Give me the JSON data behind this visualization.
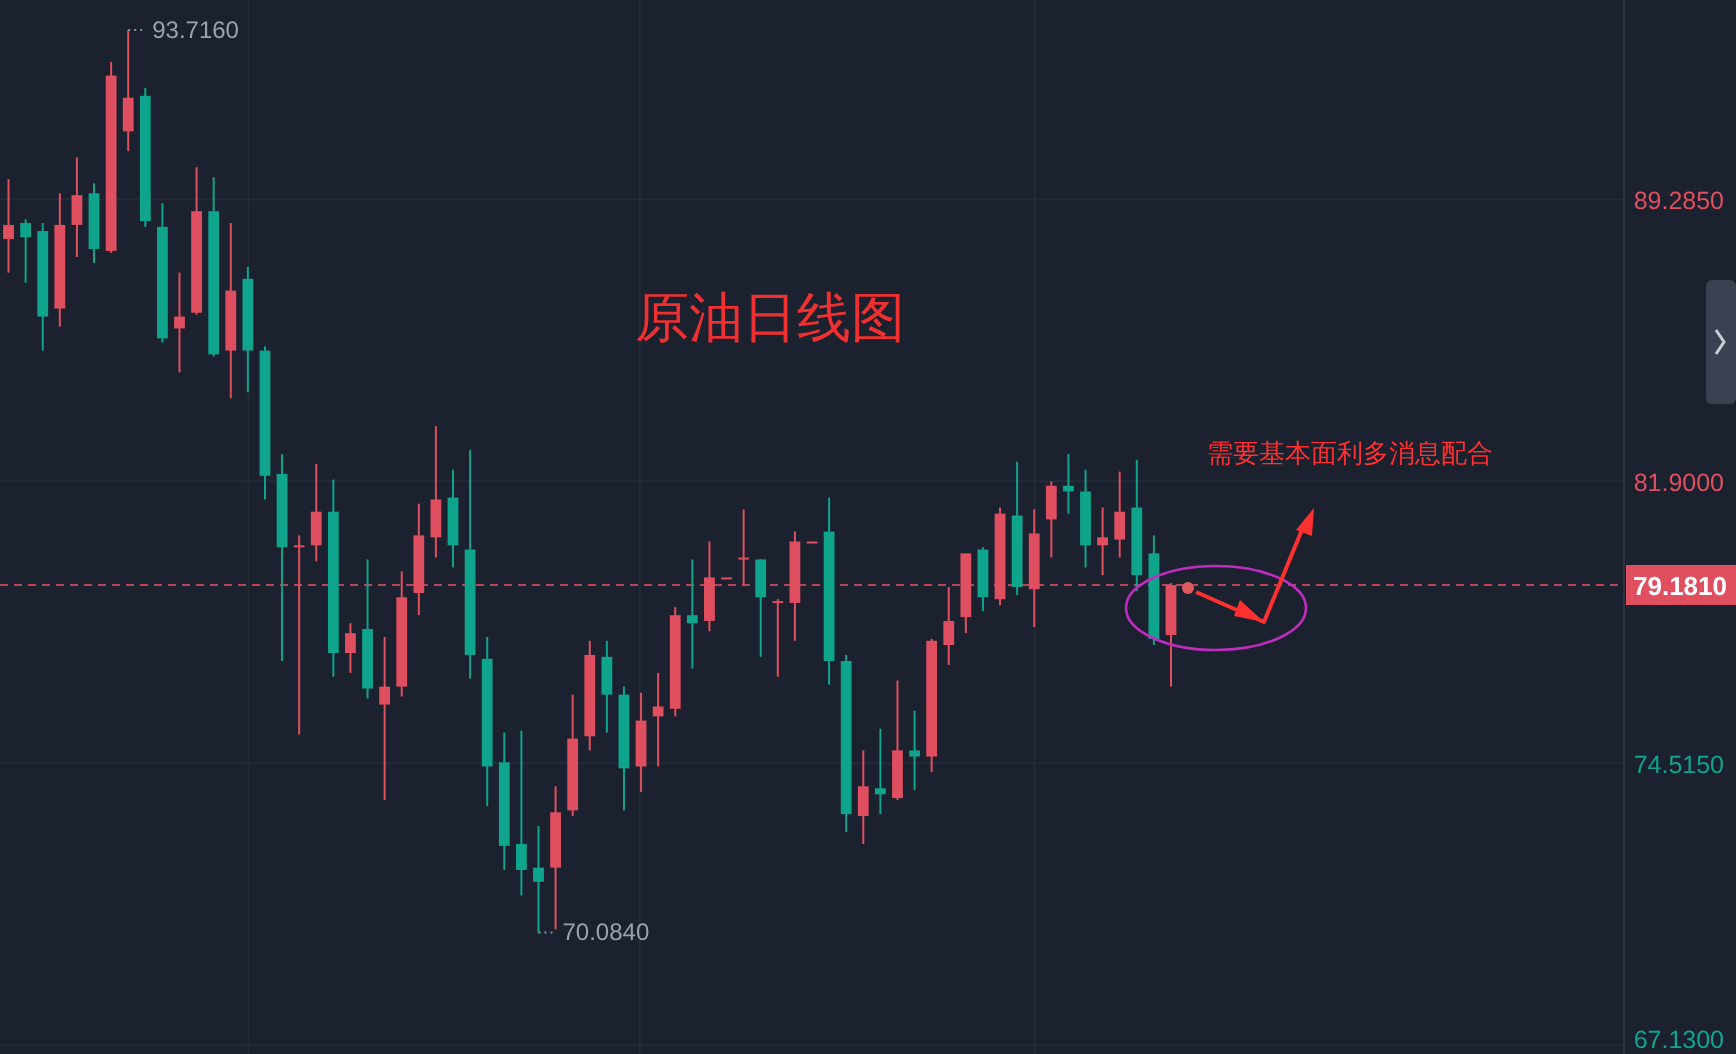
{
  "chart_data": {
    "type": "candlestick",
    "title": "原油日线图",
    "categories": [
      null,
      null,
      null,
      null,
      null,
      null,
      null,
      null,
      null,
      null,
      null,
      null,
      null,
      null,
      null,
      null,
      null,
      null,
      null,
      null,
      null,
      null,
      null,
      null,
      null,
      null,
      null,
      null,
      null,
      null,
      null,
      null,
      null,
      null,
      null,
      null,
      null,
      null,
      null,
      null,
      null,
      null,
      null,
      null,
      null,
      null,
      null,
      null,
      null,
      null,
      null,
      null,
      null,
      null,
      null,
      null,
      null,
      null,
      null,
      null,
      null,
      null,
      null,
      null,
      null,
      null,
      null,
      null,
      null,
      null,
      null,
      null,
      null,
      null,
      null,
      null,
      null,
      null,
      null,
      null,
      null,
      null,
      null,
      null,
      null,
      null,
      null,
      null,
      null,
      null,
      null,
      null,
      null,
      null,
      null
    ],
    "ohlc": [
      [
        88.24,
        89.81,
        87.36,
        88.61
      ],
      [
        88.66,
        88.76,
        87.1,
        88.29
      ],
      [
        88.45,
        88.66,
        85.32,
        86.21
      ],
      [
        86.42,
        89.44,
        85.95,
        88.61
      ],
      [
        88.61,
        90.38,
        87.77,
        89.39
      ],
      [
        89.44,
        89.7,
        87.61,
        87.98
      ],
      [
        87.93,
        92.88,
        87.88,
        92.52
      ],
      [
        91.06,
        93.716,
        90.54,
        91.94
      ],
      [
        91.99,
        92.2,
        88.56,
        88.71
      ],
      [
        88.56,
        89.18,
        85.53,
        85.64
      ],
      [
        85.9,
        87.36,
        84.75,
        86.21
      ],
      [
        86.31,
        90.12,
        86.26,
        88.97
      ],
      [
        88.97,
        89.86,
        85.17,
        85.22
      ],
      [
        85.32,
        88.66,
        84.07,
        86.89
      ],
      [
        87.2,
        87.51,
        84.23,
        85.32
      ],
      [
        85.32,
        85.43,
        81.42,
        82.04
      ],
      [
        82.09,
        82.61,
        77.19,
        80.17
      ],
      [
        80.22,
        80.48,
        75.27,
        80.22
      ],
      [
        80.22,
        82.35,
        79.8,
        81.1
      ],
      [
        81.1,
        81.94,
        76.78,
        77.4
      ],
      [
        77.4,
        78.18,
        76.88,
        77.92
      ],
      [
        78.03,
        79.85,
        76.21,
        76.47
      ],
      [
        76.05,
        77.82,
        73.55,
        76.52
      ],
      [
        76.52,
        79.54,
        76.26,
        78.86
      ],
      [
        78.97,
        81.31,
        78.39,
        80.48
      ],
      [
        80.43,
        83.34,
        79.9,
        81.42
      ],
      [
        81.47,
        82.2,
        79.64,
        80.22
      ],
      [
        80.11,
        82.72,
        76.73,
        77.35
      ],
      [
        77.25,
        77.82,
        73.39,
        74.43
      ],
      [
        74.54,
        75.32,
        71.72,
        72.35
      ],
      [
        72.4,
        75.37,
        71.05,
        71.72
      ],
      [
        71.78,
        72.87,
        70.084,
        71.41
      ],
      [
        71.78,
        73.91,
        70.16,
        73.23
      ],
      [
        73.28,
        76.31,
        73.13,
        75.16
      ],
      [
        75.22,
        77.72,
        74.85,
        77.35
      ],
      [
        77.3,
        77.72,
        75.32,
        76.31
      ],
      [
        76.31,
        76.52,
        73.28,
        74.38
      ],
      [
        74.43,
        76.36,
        73.76,
        75.63
      ],
      [
        75.74,
        76.88,
        74.43,
        76.0
      ],
      [
        75.94,
        78.6,
        75.74,
        78.39
      ],
      [
        78.39,
        79.85,
        76.99,
        78.18
      ],
      [
        78.24,
        80.32,
        77.97,
        79.38
      ],
      [
        79.38,
        79.38,
        79.38,
        79.38
      ],
      [
        79.9,
        81.16,
        79.18,
        79.9
      ],
      [
        79.85,
        79.85,
        77.3,
        78.86
      ],
      [
        78.76,
        78.81,
        76.78,
        78.76
      ],
      [
        78.71,
        80.58,
        77.72,
        80.32
      ],
      [
        80.32,
        80.32,
        80.32,
        80.32
      ],
      [
        80.58,
        81.47,
        76.57,
        77.19
      ],
      [
        77.19,
        77.35,
        72.71,
        73.18
      ],
      [
        73.13,
        74.85,
        72.4,
        73.91
      ],
      [
        73.86,
        75.42,
        73.18,
        73.7
      ],
      [
        73.6,
        76.68,
        73.55,
        74.85
      ],
      [
        74.85,
        75.89,
        73.81,
        74.69
      ],
      [
        74.69,
        77.77,
        74.28,
        77.72
      ],
      [
        77.61,
        79.13,
        77.09,
        78.24
      ],
      [
        78.34,
        80.01,
        77.92,
        80.01
      ],
      [
        80.11,
        80.17,
        78.5,
        78.86
      ],
      [
        78.81,
        81.21,
        78.65,
        81.05
      ],
      [
        81.0,
        82.41,
        78.92,
        79.13
      ],
      [
        79.07,
        81.16,
        78.08,
        80.53
      ],
      [
        80.9,
        81.89,
        79.9,
        81.78
      ],
      [
        81.78,
        82.61,
        81.05,
        81.63
      ],
      [
        81.63,
        82.2,
        79.64,
        80.22
      ],
      [
        80.22,
        81.21,
        79.44,
        80.43
      ],
      [
        80.37,
        82.15,
        79.9,
        81.1
      ],
      [
        81.21,
        82.46,
        79.02,
        79.44
      ],
      [
        80.01,
        80.48,
        77.61,
        77.77
      ],
      [
        77.87,
        79.23,
        76.52,
        79.18
      ],
      null,
      null,
      null,
      null,
      null,
      null,
      null,
      null,
      null,
      null,
      null,
      null,
      null,
      null,
      null,
      null,
      null,
      null,
      null,
      null,
      null,
      null,
      null,
      null,
      null,
      null
    ],
    "ylim": [
      66.9,
      94.5
    ],
    "yticks": [
      {
        "value": 67.13,
        "label": "67.1300"
      },
      {
        "value": 74.515,
        "label": "74.5150"
      },
      {
        "value": 81.9,
        "label": "81.9000"
      },
      {
        "value": 89.285,
        "label": "89.2850"
      }
    ],
    "tick_labels": "y",
    "grid": true,
    "ref_lines": [
      {
        "axis": "y",
        "value": 79.181,
        "label": "79.1810",
        "color": "#e04f5f",
        "line_style": "dashed"
      }
    ],
    "annotations": [
      "93.7160",
      "70.0840",
      "需要基本面利多消息配合"
    ]
  }
}
